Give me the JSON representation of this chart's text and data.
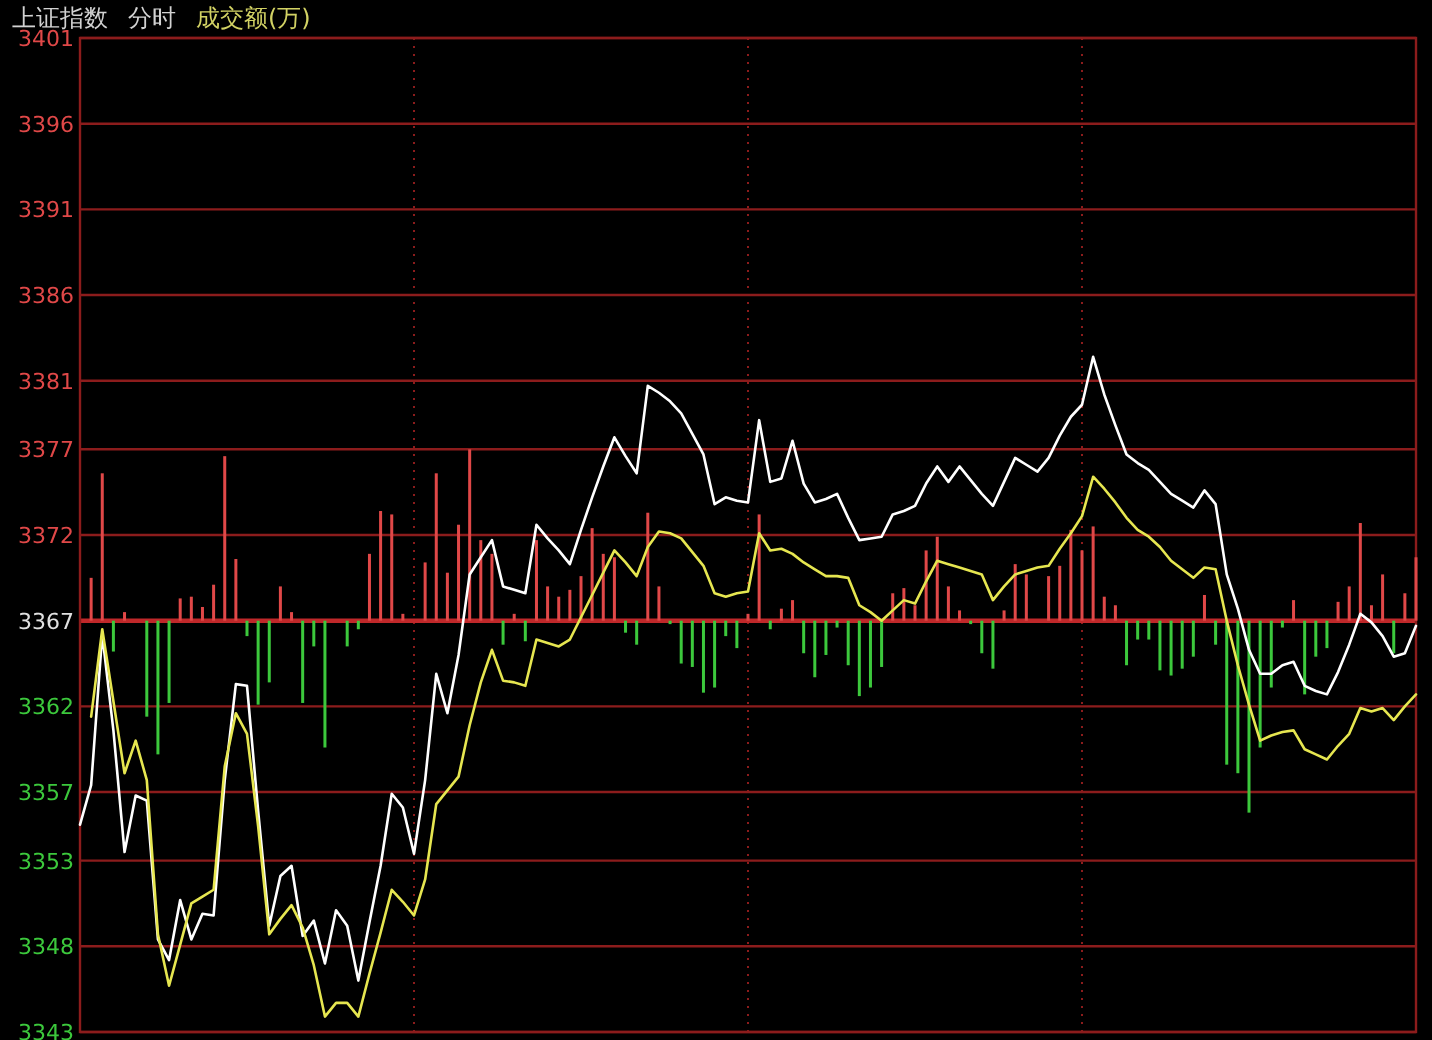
{
  "chart_data": {
    "type": "line",
    "title": "上证指数",
    "subtitle": "分时",
    "annotations": [
      "成交额(万)"
    ],
    "categories": [
      null,
      null,
      null,
      null,
      null,
      null,
      null,
      null,
      null,
      null,
      null,
      null,
      null,
      null,
      null,
      null,
      null,
      null,
      null,
      null,
      null,
      null,
      null,
      null,
      null,
      null,
      null,
      null,
      null,
      null,
      null,
      null,
      null,
      null,
      null,
      null,
      null,
      null,
      null,
      null,
      null,
      null,
      null,
      null,
      null,
      null,
      null,
      null,
      null,
      null,
      null,
      null,
      null,
      null,
      null,
      null,
      null,
      null,
      null,
      null,
      null,
      null,
      null,
      null,
      null,
      null,
      null,
      null,
      null,
      null,
      null,
      null,
      null,
      null,
      null,
      null,
      null,
      null,
      null,
      null,
      null,
      null,
      null,
      null,
      null,
      null,
      null,
      null,
      null,
      null,
      null,
      null,
      null,
      null,
      null,
      null,
      null,
      null,
      null,
      null,
      null,
      null,
      null,
      null,
      null,
      null,
      null,
      null,
      null,
      null,
      null,
      null,
      null,
      null,
      null,
      null,
      null,
      null,
      null,
      null,
      null
    ],
    "ylim": [
      3343,
      3401
    ],
    "yticks": [
      3343,
      3348,
      3353,
      3357,
      3362,
      3367,
      3372,
      3377,
      3381,
      3386,
      3391,
      3396,
      3401
    ],
    "tick_labels": "y",
    "grid": true,
    "ref_lines": [
      {
        "axis": "y",
        "value": 3367,
        "color": "#c0282a"
      }
    ],
    "series": [
      {
        "type": "bar",
        "values": [
          null,
          2.5,
          8.6,
          -1.8,
          0.5,
          null,
          -5.6,
          -7.8,
          -4.8,
          1.3,
          1.4,
          0.8,
          2.1,
          9.6,
          3.6,
          -0.9,
          -4.9,
          -3.6,
          2.0,
          0.5,
          -4.8,
          -1.5,
          -7.4,
          null,
          -1.5,
          -0.5,
          3.9,
          6.4,
          6.2,
          0.4,
          null,
          3.4,
          8.6,
          2.8,
          5.6,
          10.0,
          4.7,
          3.9,
          -1.4,
          0.4,
          -1.2,
          4.7,
          2.0,
          1.4,
          1.8,
          2.6,
          5.4,
          3.9,
          3.7,
          -0.7,
          -1.4,
          6.3,
          2.0,
          -0.2,
          -2.5,
          -2.7,
          -4.2,
          -3.9,
          -0.9,
          -1.6,
          0.4,
          6.2,
          -0.5,
          0.7,
          1.2,
          -1.9,
          -3.3,
          -2.0,
          -0.4,
          -2.6,
          -4.4,
          -3.9,
          -2.7,
          1.6,
          1.9,
          0.9,
          4.1,
          4.9,
          2.0,
          0.6,
          -0.2,
          -1.9,
          -2.8,
          0.6,
          3.3,
          2.7,
          null,
          2.6,
          3.2,
          5.3,
          4.1,
          5.5,
          1.4,
          0.9,
          -2.6,
          -1.1,
          -1.1,
          -2.9,
          -3.2,
          -2.8,
          -2.1,
          1.5,
          -1.4,
          -8.4,
          -8.9,
          -11.2,
          -7.4,
          -3.9,
          -0.4,
          1.2,
          -4.3,
          -2.1,
          -1.6,
          1.1,
          2.0,
          5.7,
          0.9,
          2.7,
          -1.9,
          1.6,
          3.7
        ],
        "colors": [
          null,
          "#e04848",
          "#e04848",
          "#3cc83c",
          "#e04848",
          null,
          "#3cc83c",
          "#3cc83c",
          "#3cc83c",
          "#e04848",
          "#e04848",
          "#e04848",
          "#e04848",
          "#e04848",
          "#e04848",
          "#3cc83c",
          "#3cc83c",
          "#3cc83c",
          "#e04848",
          "#e04848",
          "#3cc83c",
          "#3cc83c",
          "#3cc83c",
          null,
          "#3cc83c",
          "#3cc83c",
          "#e04848",
          "#e04848",
          "#e04848",
          "#e04848",
          null,
          "#e04848",
          "#e04848",
          "#e04848",
          "#e04848",
          "#e04848",
          "#e04848",
          "#e04848",
          "#3cc83c",
          "#e04848",
          "#3cc83c",
          "#e04848",
          "#e04848",
          "#e04848",
          "#e04848",
          "#e04848",
          "#e04848",
          "#e04848",
          "#e04848",
          "#3cc83c",
          "#3cc83c",
          "#e04848",
          "#e04848",
          "#3cc83c",
          "#3cc83c",
          "#3cc83c",
          "#3cc83c",
          "#3cc83c",
          "#3cc83c",
          "#3cc83c",
          "#e04848",
          "#e04848",
          "#3cc83c",
          "#e04848",
          "#e04848",
          "#3cc83c",
          "#3cc83c",
          "#3cc83c",
          "#3cc83c",
          "#3cc83c",
          "#3cc83c",
          "#3cc83c",
          "#3cc83c",
          "#e04848",
          "#e04848",
          "#e04848",
          "#e04848",
          "#e04848",
          "#e04848",
          "#e04848",
          "#3cc83c",
          "#3cc83c",
          "#3cc83c",
          "#e04848",
          "#e04848",
          "#e04848",
          null,
          "#e04848",
          "#e04848",
          "#e04848",
          "#e04848",
          "#e04848",
          "#e04848",
          "#e04848",
          "#3cc83c",
          "#3cc83c",
          "#3cc83c",
          "#3cc83c",
          "#3cc83c",
          "#3cc83c",
          "#3cc83c",
          "#e04848",
          "#3cc83c",
          "#3cc83c",
          "#3cc83c",
          "#3cc83c",
          "#3cc83c",
          "#3cc83c",
          "#3cc83c",
          "#e04848",
          "#3cc83c",
          "#3cc83c",
          "#3cc83c",
          "#e04848",
          "#e04848",
          "#e04848",
          "#e04848",
          "#e04848",
          "#3cc83c",
          "#e04848",
          "#e04848"
        ],
        "base": [
          null,
          3367,
          3367,
          3367,
          3367,
          null,
          3367,
          3367,
          3367,
          3367,
          3367,
          3367,
          3367,
          3367,
          3367,
          3367,
          3367,
          3367,
          3367,
          3367,
          3367,
          3367,
          3367,
          null,
          3367,
          3367,
          3367,
          3367,
          3367,
          3367,
          null,
          3367,
          3367,
          3367,
          3367,
          3367,
          3367,
          3367,
          3367,
          3367,
          3367,
          3367,
          3367,
          3367,
          3367,
          3367,
          3367,
          3367,
          3367,
          3367,
          3367,
          3367,
          3367,
          3367,
          3367,
          3367,
          3367,
          3367,
          3367,
          3367,
          3367,
          3367,
          3367,
          3367,
          3367,
          3367,
          3367,
          3367,
          3367,
          3367,
          3367,
          3367,
          3367,
          3367,
          3367,
          3367,
          3367,
          3367,
          3367,
          3367,
          3367,
          3367,
          3367,
          3367,
          3367,
          3367,
          null,
          3367,
          3367,
          3367,
          3367,
          3367,
          3367,
          3367,
          3367,
          3367,
          3367,
          3367,
          3367,
          3367,
          3367,
          3367,
          3367,
          3367,
          3367,
          3367,
          3367,
          3367,
          3367,
          3367,
          3367,
          3367,
          3367,
          3367,
          3367,
          3367,
          3367,
          3367,
          3367,
          3367,
          3367
        ]
      },
      {
        "color": "#ffffff",
        "values": [
          3355.1,
          3357.4,
          3366.2,
          3360.6,
          3353.5,
          3356.8,
          3356.5,
          3348.4,
          3347.2,
          3350.7,
          3348.4,
          3349.9,
          3349.8,
          3357.7,
          3363.3,
          3363.2,
          3355.9,
          3349.2,
          3352.1,
          3352.7,
          3348.6,
          3349.5,
          3347.0,
          3350.1,
          3349.2,
          3346.0,
          3349.4,
          3352.7,
          3356.9,
          3356.1,
          3353.4,
          3357.7,
          3363.9,
          3361.6,
          3365.0,
          3369.7,
          3370.7,
          3371.7,
          3369.0,
          3368.8,
          3368.6,
          3372.6,
          3371.8,
          3371.1,
          3370.3,
          3372.3,
          3374.2,
          3376.0,
          3377.7,
          3376.6,
          3375.6,
          3380.7,
          3380.3,
          3379.8,
          3379.1,
          3377.9,
          3376.7,
          3373.8,
          3374.2,
          3374.0,
          3373.9,
          3378.7,
          3375.1,
          3375.3,
          3377.5,
          3375.0,
          3373.9,
          3374.1,
          3374.4,
          3373.0,
          3371.7,
          3371.8,
          3371.9,
          3373.2,
          3373.4,
          3373.7,
          3375.0,
          3376.0,
          3375.1,
          3376.0,
          3375.2,
          3374.4,
          3373.7,
          3375.1,
          3376.5,
          3376.1,
          3375.7,
          3376.5,
          3377.8,
          3378.9,
          3379.6,
          3382.4,
          3380.2,
          3378.4,
          3376.7,
          3376.2,
          3375.8,
          3375.1,
          3374.4,
          3374.0,
          3373.6,
          3374.6,
          3373.8,
          3369.7,
          3367.7,
          3365.3,
          3363.9,
          3363.9,
          3364.4,
          3364.6,
          3363.2,
          3362.9,
          3362.7,
          3364.0,
          3365.6,
          3367.4,
          3366.9,
          3366.1,
          3364.9,
          3365.1,
          3366.7
        ]
      },
      {
        "color": "#e6e650",
        "values": [
          null,
          3361.4,
          3366.5,
          3362.3,
          3358.1,
          3360.0,
          3357.7,
          3348.7,
          3345.7,
          3348.1,
          3350.5,
          3350.9,
          3351.3,
          3358.5,
          3361.6,
          3360.4,
          3355.0,
          3348.7,
          3349.6,
          3350.4,
          3349.1,
          3346.9,
          3343.9,
          3344.7,
          3344.7,
          3343.9,
          3346.4,
          3348.8,
          3351.3,
          3350.6,
          3349.8,
          3351.9,
          3356.3,
          3357.1,
          3357.9,
          3360.9,
          3363.4,
          3365.3,
          3363.5,
          3363.4,
          3363.2,
          3365.9,
          3365.7,
          3365.5,
          3365.9,
          3367.2,
          3368.5,
          3369.8,
          3371.1,
          3370.4,
          3369.6,
          3371.3,
          3372.2,
          3372.1,
          3371.8,
          3371.0,
          3370.2,
          3368.6,
          3368.4,
          3368.6,
          3368.7,
          3372.1,
          3371.1,
          3371.2,
          3370.9,
          3370.4,
          3370.0,
          3369.6,
          3369.6,
          3369.5,
          3367.9,
          3367.5,
          3367.0,
          3367.6,
          3368.2,
          3368.0,
          3369.3,
          3370.5,
          3370.3,
          3370.1,
          3369.9,
          3369.7,
          3368.2,
          3369.0,
          3369.7,
          3369.9,
          3370.1,
          3370.2,
          3371.2,
          3372.1,
          3373.1,
          3375.4,
          3374.7,
          3373.9,
          3373.0,
          3372.3,
          3371.9,
          3371.3,
          3370.5,
          3370.0,
          3369.5,
          3370.1,
          3370.0,
          3367.0,
          3364.4,
          3362.1,
          3360.0,
          3360.3,
          3360.5,
          3360.6,
          3359.5,
          3359.2,
          3358.9,
          3359.7,
          3360.4,
          3361.9,
          3361.7,
          3361.9,
          3361.2,
          3362.0,
          3362.7
        ]
      }
    ]
  }
}
